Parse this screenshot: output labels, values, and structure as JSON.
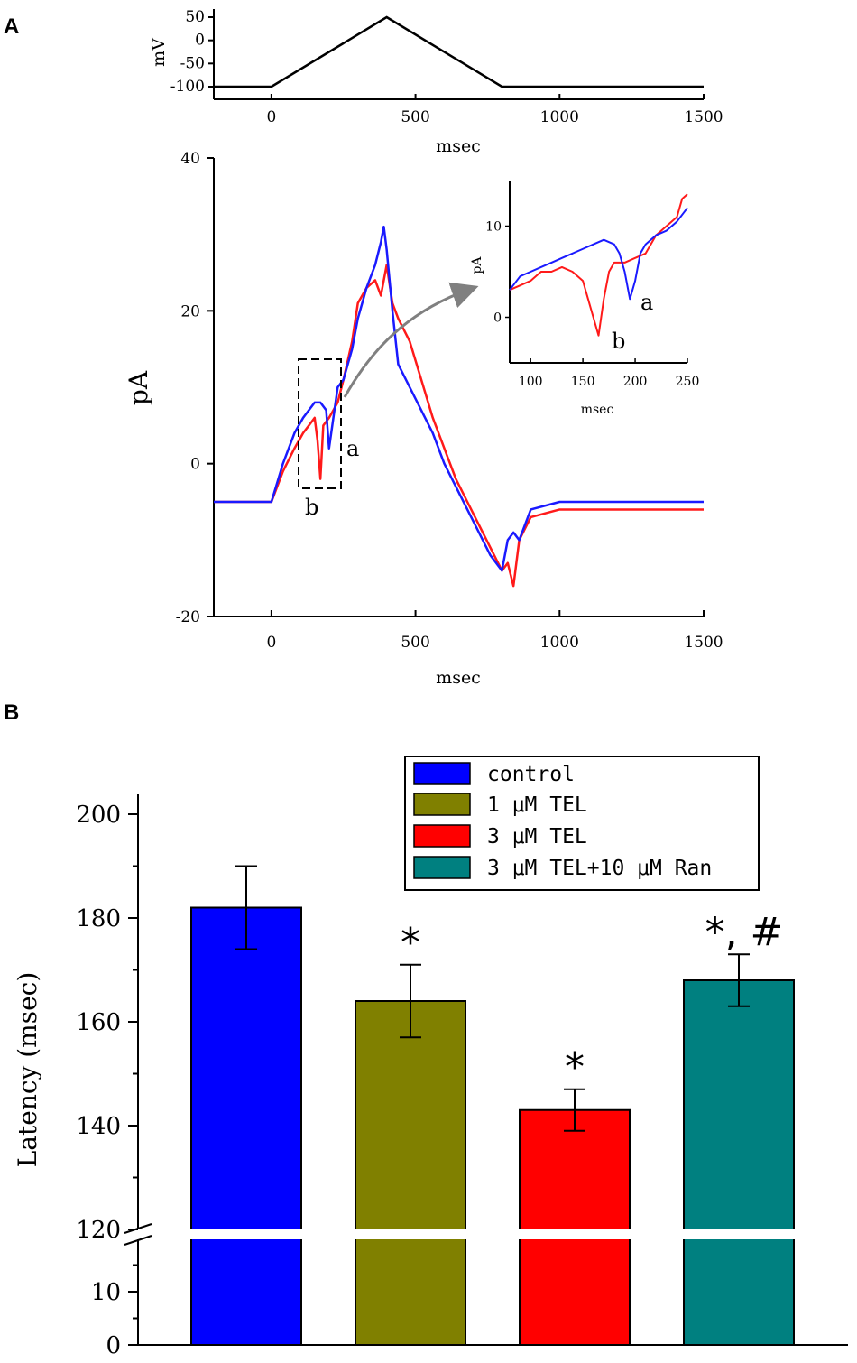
{
  "panels": {
    "a_label": "A",
    "b_label": "B"
  },
  "colors": {
    "red_trace": "#ff1a1a",
    "blue_trace": "#1a1aff",
    "control": "#0000ff",
    "tel1": "#808000",
    "tel3": "#ff0000",
    "tel3_ran": "#008080"
  },
  "chart_data": [
    {
      "id": "voltage-protocol",
      "type": "line",
      "xlabel": "msec",
      "ylabel": "mV",
      "xlim": [
        -200,
        1500
      ],
      "ylim": [
        -110,
        55
      ],
      "xticks": [
        0,
        500,
        1000,
        1500
      ],
      "yticks": [
        50,
        0,
        -50,
        -100
      ],
      "series": [
        {
          "name": "ramp",
          "x": [
            -200,
            0,
            400,
            800,
            1500
          ],
          "y": [
            -100,
            -100,
            50,
            -100,
            -100
          ]
        }
      ]
    },
    {
      "id": "current-traces",
      "type": "line",
      "xlabel": "msec",
      "ylabel": "pA",
      "xlim": [
        -200,
        1500
      ],
      "ylim": [
        -20,
        40
      ],
      "xticks": [
        0,
        500,
        1000,
        1500
      ],
      "yticks": [
        40,
        20,
        0,
        -20
      ],
      "annotations": [
        "a",
        "b"
      ],
      "series": [
        {
          "name": "red",
          "x": [
            -200,
            0,
            40,
            80,
            110,
            130,
            150,
            160,
            170,
            180,
            200,
            230,
            250,
            280,
            300,
            330,
            360,
            380,
            400,
            420,
            440,
            480,
            520,
            560,
            600,
            640,
            680,
            720,
            760,
            800,
            820,
            840,
            860,
            900,
            1000,
            1100,
            1200,
            1300,
            1400,
            1500
          ],
          "y": [
            -5,
            -5,
            -1,
            2,
            4,
            5,
            6,
            3,
            -2,
            5,
            6,
            8,
            11,
            16,
            21,
            23,
            24,
            22,
            26,
            21,
            19,
            16,
            11,
            6,
            2,
            -2,
            -5,
            -8,
            -11,
            -14,
            -13,
            -16,
            -10,
            -7,
            -6,
            -6,
            -6,
            -6,
            -6,
            -6
          ]
        },
        {
          "name": "blue",
          "x": [
            -200,
            0,
            40,
            80,
            110,
            130,
            150,
            170,
            190,
            200,
            230,
            250,
            280,
            300,
            330,
            360,
            380,
            390,
            400,
            420,
            440,
            480,
            520,
            560,
            600,
            640,
            680,
            720,
            760,
            800,
            820,
            840,
            860,
            900,
            1000,
            1100,
            1200,
            1300,
            1400,
            1500
          ],
          "y": [
            -5,
            -5,
            0,
            4,
            6,
            7,
            8,
            8,
            7,
            2,
            10,
            11,
            15,
            19,
            23,
            26,
            29,
            31,
            28,
            20,
            13,
            10,
            7,
            4,
            0,
            -3,
            -6,
            -9,
            -12,
            -14,
            -10,
            -9,
            -10,
            -6,
            -5,
            -5,
            -5,
            -5,
            -5,
            -5
          ]
        }
      ]
    },
    {
      "id": "inset-zoom",
      "type": "line",
      "xlabel": "msec",
      "ylabel": "pA",
      "xlim": [
        80,
        250
      ],
      "ylim": [
        -5,
        15
      ],
      "xticks": [
        100,
        150,
        200,
        250
      ],
      "yticks": [
        10,
        0
      ],
      "annotations": [
        "a",
        "b"
      ],
      "series": [
        {
          "name": "red",
          "x": [
            80,
            90,
            100,
            110,
            120,
            130,
            140,
            150,
            155,
            160,
            165,
            170,
            175,
            180,
            190,
            200,
            210,
            220,
            230,
            240,
            245,
            250
          ],
          "y": [
            3,
            3.5,
            4,
            5,
            5,
            5.5,
            5,
            4,
            2,
            0,
            -2,
            2,
            5,
            6,
            6,
            6.5,
            7,
            9,
            10,
            11,
            13,
            13.5
          ]
        },
        {
          "name": "blue",
          "x": [
            80,
            90,
            100,
            110,
            120,
            130,
            140,
            150,
            160,
            170,
            180,
            185,
            190,
            195,
            200,
            205,
            210,
            220,
            230,
            240,
            250
          ],
          "y": [
            3,
            4.5,
            5,
            5.5,
            6,
            6.5,
            7,
            7.5,
            8,
            8.5,
            8,
            7,
            5,
            2,
            4,
            7,
            8,
            9,
            9.5,
            10.5,
            12
          ]
        }
      ]
    },
    {
      "id": "latency-bars",
      "type": "bar",
      "ylabel": "Latency (msec)",
      "yticks_upper": [
        200,
        180,
        160,
        140,
        120
      ],
      "yticks_lower": [
        10,
        0
      ],
      "axis_break": [
        20,
        120
      ],
      "ylim": [
        0,
        200
      ],
      "categories": [
        "control",
        "1 μM TEL",
        "3 μM TEL",
        "3 μM TEL+10 μM Ran"
      ],
      "values": [
        182,
        164,
        143,
        168
      ],
      "errors": [
        8,
        7,
        4,
        5
      ],
      "significance": [
        "",
        "*",
        "*",
        "*, #"
      ]
    }
  ]
}
